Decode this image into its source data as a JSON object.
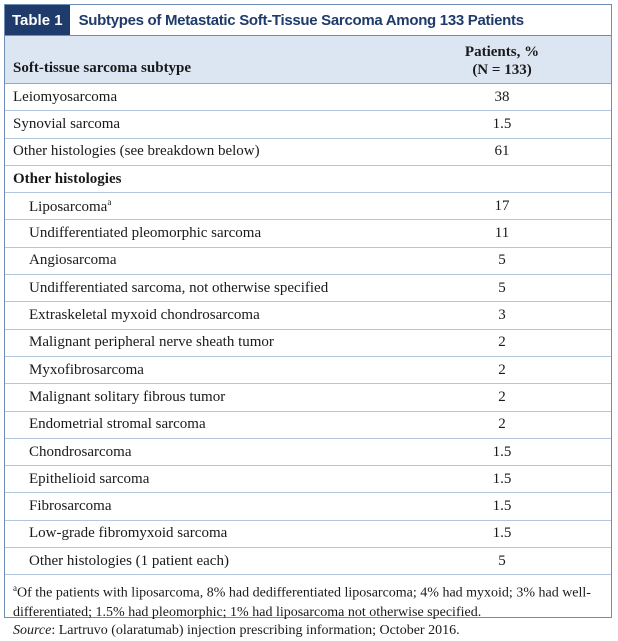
{
  "header": {
    "tag": "Table 1",
    "title": "Subtypes of Metastatic Soft-Tissue Sarcoma Among 133 Patients"
  },
  "table": {
    "columns": [
      "Soft-tissue sarcoma subtype",
      "Patients, %",
      "(N = 133)"
    ],
    "rows": [
      {
        "label": "Leiomyosarcoma",
        "value": 38
      },
      {
        "label": "Synovial sarcoma",
        "value": 1.5
      },
      {
        "label": "Other histologies (see breakdown below)",
        "value": 61
      }
    ],
    "section": "Other histologies",
    "sub_rows": [
      {
        "label": "Liposarcoma",
        "marker": "a",
        "value": 17
      },
      {
        "label": "Undifferentiated pleomorphic sarcoma",
        "value": 11
      },
      {
        "label": "Angiosarcoma",
        "value": 5
      },
      {
        "label": "Undifferentiated sarcoma, not otherwise specified",
        "value": 5
      },
      {
        "label": "Extraskeletal myxoid chondrosarcoma",
        "value": 3
      },
      {
        "label": "Malignant peripheral nerve sheath tumor",
        "value": 2
      },
      {
        "label": "Myxofibrosarcoma",
        "value": 2
      },
      {
        "label": "Malignant solitary fibrous tumor",
        "value": 2
      },
      {
        "label": "Endometrial stromal sarcoma",
        "value": 2
      },
      {
        "label": "Chondrosarcoma",
        "value": 1.5
      },
      {
        "label": "Epithelioid sarcoma",
        "value": 1.5
      },
      {
        "label": "Fibrosarcoma",
        "value": 1.5
      },
      {
        "label": "Low-grade fibromyxoid sarcoma",
        "value": 1.5
      },
      {
        "label": "Other histologies (1 patient each)",
        "value": 5
      }
    ]
  },
  "footnote": {
    "marker": "a",
    "text": "Of the patients with liposarcoma, 8% had dedifferentiated liposarcoma; 4% had myxoid; 3% had well-differentiated; 1.5% had pleomorphic; 1% had liposarcoma not otherwise specified."
  },
  "source": {
    "label": "Source",
    "text": ": Lartruvo (olaratumab) injection prescribing information; October 2016."
  }
}
